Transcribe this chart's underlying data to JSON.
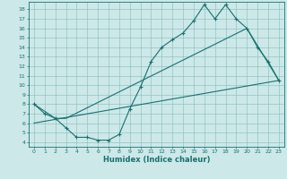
{
  "xlabel": "Humidex (Indice chaleur)",
  "bg_color": "#cce8e8",
  "grid_color": "#88bbbb",
  "line_color": "#1a7070",
  "xlim": [
    -0.5,
    23.5
  ],
  "ylim": [
    3.5,
    18.8
  ],
  "xticks": [
    0,
    1,
    2,
    3,
    4,
    5,
    6,
    7,
    8,
    9,
    10,
    11,
    12,
    13,
    14,
    15,
    16,
    17,
    18,
    19,
    20,
    21,
    22,
    23
  ],
  "yticks": [
    4,
    5,
    6,
    7,
    8,
    9,
    10,
    11,
    12,
    13,
    14,
    15,
    16,
    17,
    18
  ],
  "line1_x": [
    0,
    1,
    2,
    3,
    4,
    5,
    6,
    7,
    8,
    9,
    10,
    11,
    12,
    13,
    14,
    15,
    16,
    17,
    18,
    19,
    20,
    21,
    22,
    23
  ],
  "line1_y": [
    8.0,
    7.0,
    6.5,
    5.5,
    4.5,
    4.5,
    4.2,
    4.2,
    4.8,
    7.5,
    9.8,
    12.5,
    14.0,
    14.8,
    15.5,
    16.8,
    18.5,
    17.0,
    18.5,
    17.0,
    16.0,
    14.0,
    12.5,
    10.5
  ],
  "line2_x": [
    0,
    2,
    3,
    20,
    23
  ],
  "line2_y": [
    8.0,
    6.5,
    6.5,
    16.0,
    10.5
  ],
  "line3_x": [
    0,
    23
  ],
  "line3_y": [
    6.0,
    10.5
  ]
}
